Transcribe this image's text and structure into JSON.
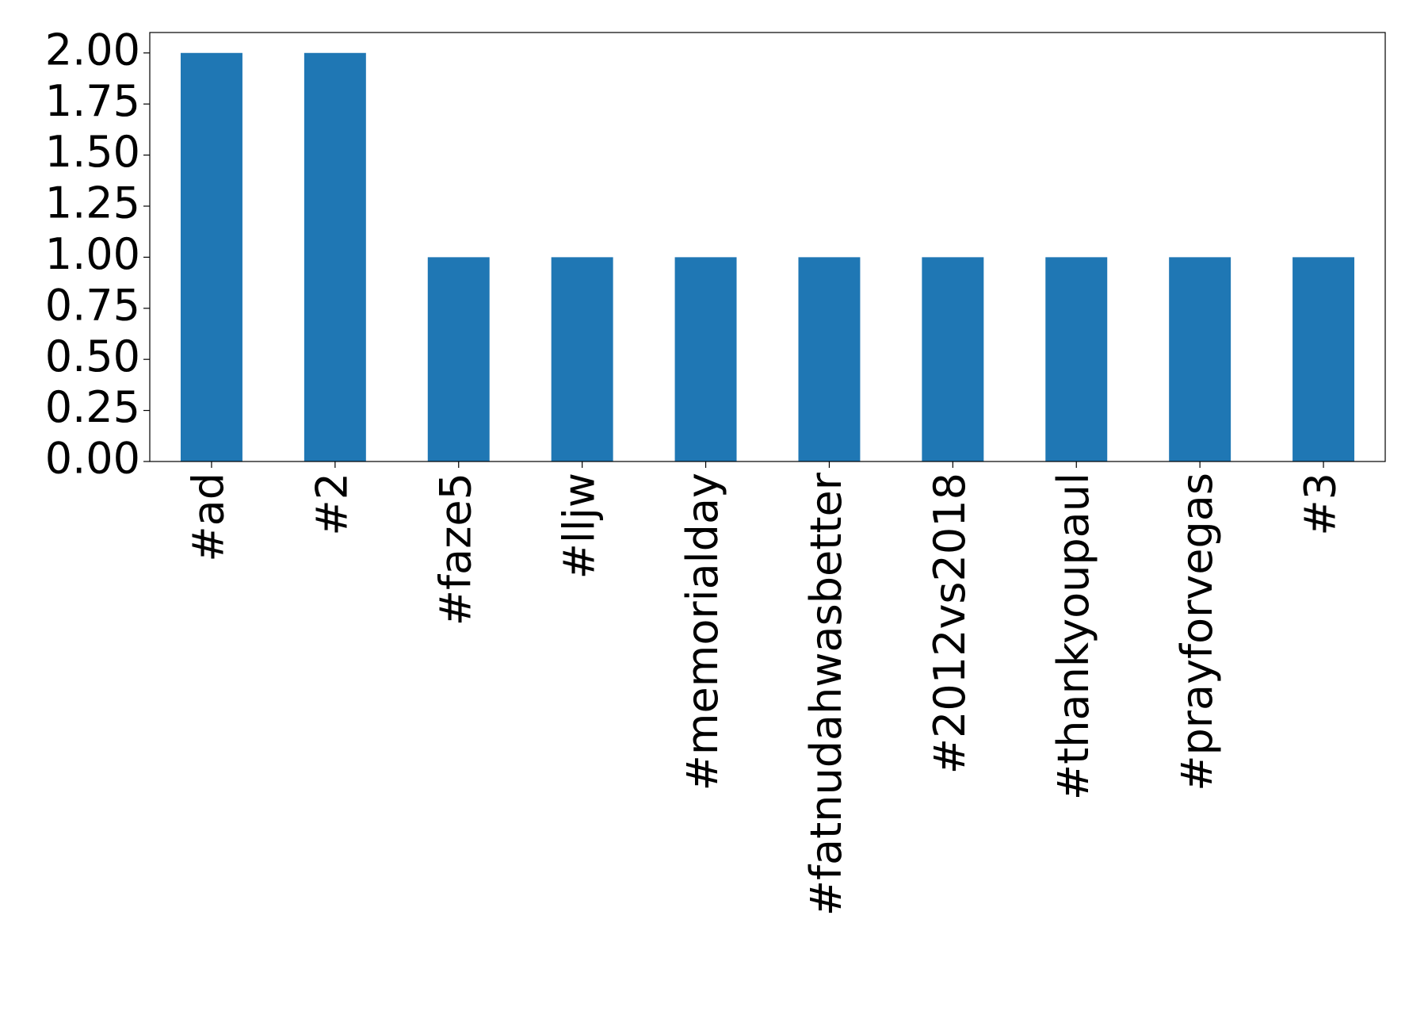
{
  "chart_data": {
    "type": "bar",
    "categories": [
      "#ad",
      "#2",
      "#faze5",
      "#lljw",
      "#memorialday",
      "#fatnudahwasbetter",
      "#2012vs2018",
      "#thankyoupaul",
      "#prayforvegas",
      "#3"
    ],
    "values": [
      2,
      2,
      1,
      1,
      1,
      1,
      1,
      1,
      1,
      1
    ],
    "color": "#1f77b4",
    "ylim": [
      0,
      2.1
    ],
    "yticks": [
      {
        "value": 0,
        "label": "0.00"
      },
      {
        "value": 0.25,
        "label": "0.25"
      },
      {
        "value": 0.5,
        "label": "0.50"
      },
      {
        "value": 0.75,
        "label": "0.75"
      },
      {
        "value": 1,
        "label": "1.00"
      },
      {
        "value": 1.25,
        "label": "1.25"
      },
      {
        "value": 1.5,
        "label": "1.50"
      },
      {
        "value": 1.75,
        "label": "1.75"
      },
      {
        "value": 2,
        "label": "2.00"
      }
    ],
    "grid": false
  }
}
